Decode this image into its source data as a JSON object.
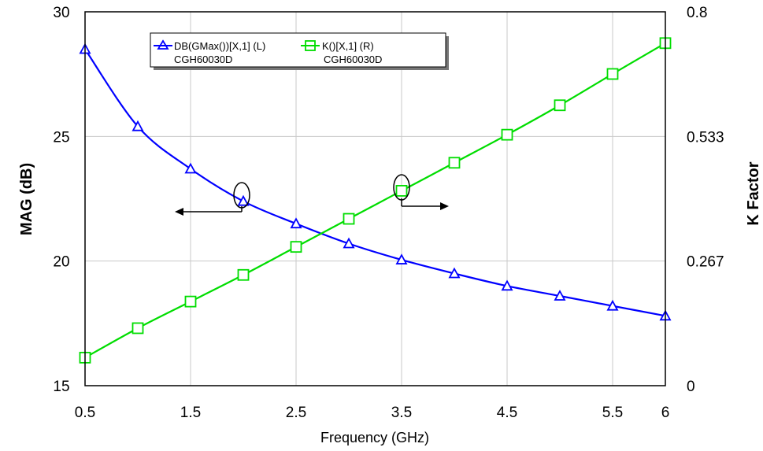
{
  "chart_data": {
    "type": "line",
    "xlabel": "Frequency (GHz)",
    "ylabel_left": "MAG (dB)",
    "ylabel_right": "K Factor",
    "xlim": [
      0.5,
      6
    ],
    "ylim_left": [
      15,
      30
    ],
    "ylim_right": [
      0,
      0.8
    ],
    "x_ticks": [
      "0.5",
      "1.5",
      "2.5",
      "3.5",
      "4.5",
      "5.5",
      "6"
    ],
    "x_tick_values": [
      0.5,
      1.5,
      2.5,
      3.5,
      4.5,
      5.5,
      6
    ],
    "y_left_ticks": [
      "30",
      "25",
      "20",
      "15"
    ],
    "y_left_tick_values": [
      30,
      25,
      20,
      15
    ],
    "y_right_ticks": [
      "0.8",
      "0.533",
      "0.267",
      "0"
    ],
    "y_right_tick_values": [
      0.8,
      0.533,
      0.267,
      0
    ],
    "grid": true,
    "legend_placement": "top-left",
    "series": [
      {
        "name": "DB(GMax())[X,1] (L)",
        "sub": "CGH60030D",
        "axis": "left",
        "color": "#0000ff",
        "marker": "triangle",
        "x": [
          0.5,
          1.0,
          1.5,
          2.0,
          2.5,
          3.0,
          3.5,
          4.0,
          4.5,
          5.0,
          5.5,
          6.0
        ],
        "y": [
          28.5,
          25.4,
          23.7,
          22.4,
          21.5,
          20.7,
          20.05,
          19.5,
          19.0,
          18.6,
          18.2,
          17.8
        ]
      },
      {
        "name": "K()[X,1] (R)",
        "sub": "CGH60030D",
        "axis": "right",
        "color": "#00dd00",
        "marker": "square",
        "x": [
          0.5,
          1.0,
          1.5,
          2.0,
          2.5,
          3.0,
          3.5,
          4.0,
          4.5,
          5.0,
          5.5,
          6.0
        ],
        "y": [
          0.06,
          0.123,
          0.18,
          0.237,
          0.297,
          0.357,
          0.417,
          0.477,
          0.537,
          0.6,
          0.667,
          0.733
        ]
      }
    ]
  }
}
